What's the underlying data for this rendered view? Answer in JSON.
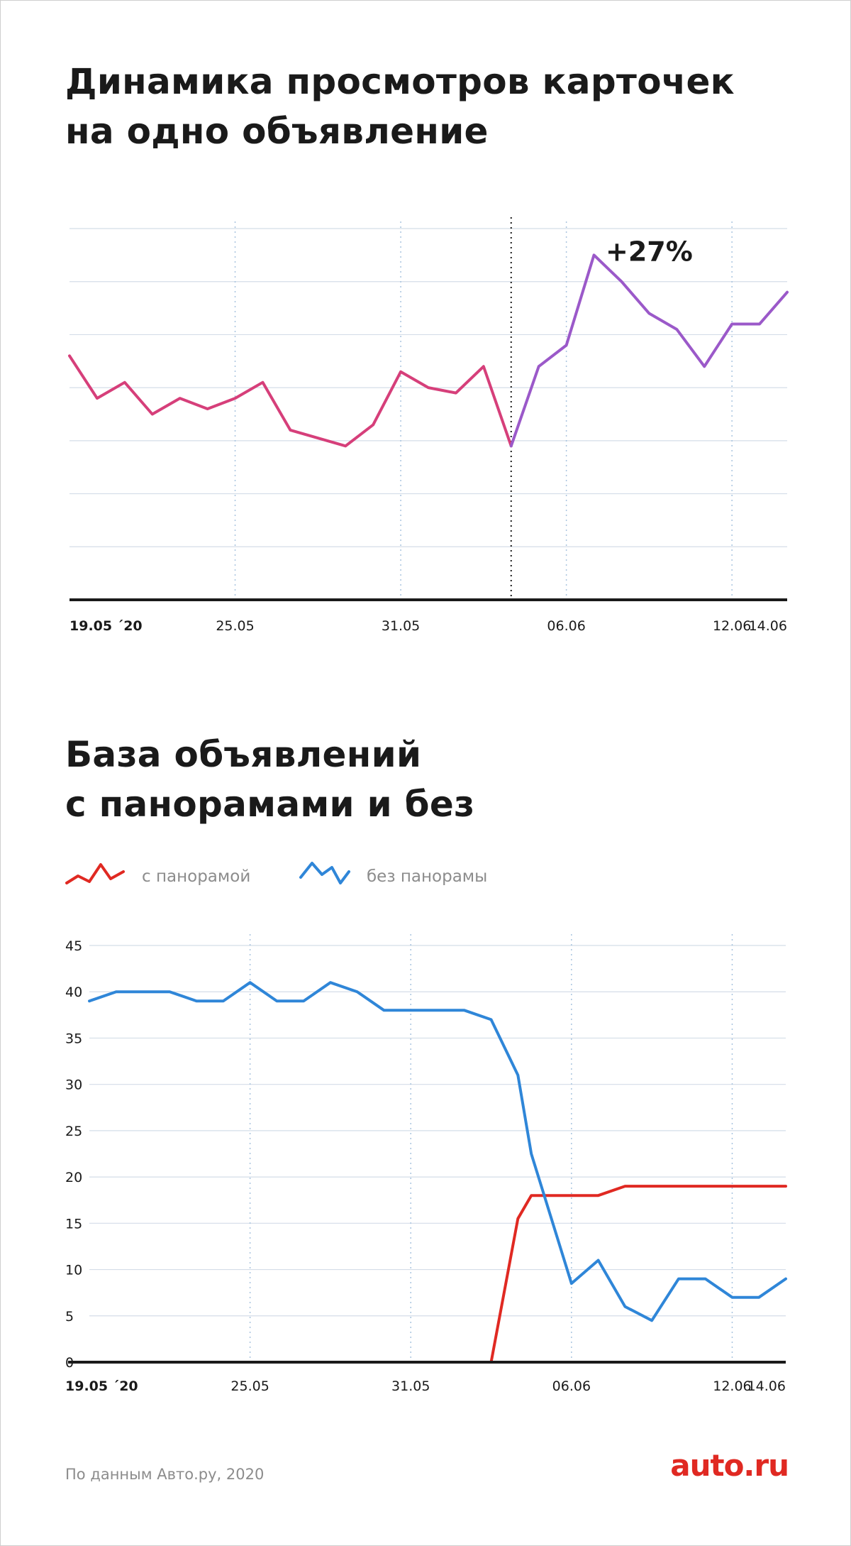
{
  "charts": [
    {
      "title_lines": [
        "Динамика просмотров карточек",
        "на одно объявление"
      ],
      "chart_data": {
        "type": "line",
        "title": "Динамика просмотров карточек на одно объявление",
        "xlabel": "",
        "ylabel": "",
        "x_start": "19.05",
        "x_end": "14.06",
        "x_ticks": [
          {
            "label": "19.05 ´20",
            "date": "19.05",
            "bold": true
          },
          {
            "label": "25.05",
            "date": "25.05"
          },
          {
            "label": "31.05",
            "date": "31.05"
          },
          {
            "label": "06.06",
            "date": "06.06"
          },
          {
            "label": "12.06",
            "date": "12.06"
          },
          {
            "label": "14.06",
            "date": "14.06"
          }
        ],
        "ylim": [
          0,
          7
        ],
        "y_gridlines": [
          1,
          2,
          3,
          4,
          5,
          6,
          7
        ],
        "grid": true,
        "marker_date": "04.06",
        "annotation": {
          "text": "+27%",
          "date": "09.06",
          "y": 6.5
        },
        "series": [
          {
            "color_before": "#d63f7a",
            "color_after": "#9b59c9",
            "points": [
              {
                "date": "19.05",
                "y": 4.6
              },
              {
                "date": "20.05",
                "y": 3.8
              },
              {
                "date": "21.05",
                "y": 4.1
              },
              {
                "date": "22.05",
                "y": 3.5
              },
              {
                "date": "23.05",
                "y": 3.8
              },
              {
                "date": "24.05",
                "y": 3.6
              },
              {
                "date": "25.05",
                "y": 3.8
              },
              {
                "date": "26.05",
                "y": 4.1
              },
              {
                "date": "27.05",
                "y": 3.2
              },
              {
                "date": "29.05",
                "y": 2.9
              },
              {
                "date": "30.05",
                "y": 3.3
              },
              {
                "date": "31.05",
                "y": 4.3
              },
              {
                "date": "01.06",
                "y": 4.0
              },
              {
                "date": "02.06",
                "y": 3.9
              },
              {
                "date": "03.06",
                "y": 4.4
              },
              {
                "date": "04.06",
                "y": 2.9
              },
              {
                "date": "05.06",
                "y": 4.4
              },
              {
                "date": "06.06",
                "y": 4.8
              },
              {
                "date": "07.06",
                "y": 6.5
              },
              {
                "date": "08.06",
                "y": 6.0
              },
              {
                "date": "09.06",
                "y": 5.4
              },
              {
                "date": "10.06",
                "y": 5.1
              },
              {
                "date": "11.06",
                "y": 4.4
              },
              {
                "date": "12.06",
                "y": 5.2
              },
              {
                "date": "13.06",
                "y": 5.2
              },
              {
                "date": "14.06",
                "y": 5.8
              }
            ]
          }
        ]
      }
    },
    {
      "title_lines": [
        "База объявлений",
        "с панорамами и без"
      ],
      "legend": [
        {
          "label": "с панорамой",
          "color": "#e02922"
        },
        {
          "label": "без панорамы",
          "color": "#2f86d8"
        }
      ],
      "chart_data": {
        "type": "line",
        "title": "База объявлений с панорамами и без",
        "xlabel": "",
        "ylabel": "",
        "x_start": "19.05",
        "x_end": "14.06",
        "x_ticks": [
          {
            "label": "19.05 ´20",
            "date": "19.05",
            "bold": true
          },
          {
            "label": "25.05",
            "date": "25.05"
          },
          {
            "label": "31.05",
            "date": "31.05"
          },
          {
            "label": "06.06",
            "date": "06.06"
          },
          {
            "label": "12.06",
            "date": "12.06"
          },
          {
            "label": "14.06",
            "date": "14.06"
          }
        ],
        "ylim": [
          0,
          45
        ],
        "y_ticks": [
          0,
          5,
          10,
          15,
          20,
          25,
          30,
          35,
          40,
          45
        ],
        "grid": true,
        "series": [
          {
            "name": "с панорамой",
            "color": "#e02922",
            "points": [
              {
                "date": "19.05",
                "y": 0
              },
              {
                "date": "03.06",
                "y": 0
              },
              {
                "date": "04.06",
                "y": 15.5
              },
              {
                "date": "04.06 12:00",
                "y": 18
              },
              {
                "date": "07.06",
                "y": 18
              },
              {
                "date": "08.06",
                "y": 19
              },
              {
                "date": "14.06",
                "y": 19
              }
            ]
          },
          {
            "name": "без панорамы",
            "color": "#2f86d8",
            "points": [
              {
                "date": "19.05",
                "y": 39
              },
              {
                "date": "20.05",
                "y": 40
              },
              {
                "date": "21.05",
                "y": 40
              },
              {
                "date": "22.05",
                "y": 40
              },
              {
                "date": "23.05",
                "y": 39
              },
              {
                "date": "24.05",
                "y": 39
              },
              {
                "date": "25.05",
                "y": 41
              },
              {
                "date": "26.05",
                "y": 39
              },
              {
                "date": "27.05",
                "y": 39
              },
              {
                "date": "28.05",
                "y": 41
              },
              {
                "date": "29.05",
                "y": 40
              },
              {
                "date": "30.05",
                "y": 38
              },
              {
                "date": "31.05",
                "y": 38
              },
              {
                "date": "02.06",
                "y": 38
              },
              {
                "date": "03.06",
                "y": 37
              },
              {
                "date": "04.06",
                "y": 31
              },
              {
                "date": "04.06 12:00",
                "y": 22.5
              },
              {
                "date": "06.06",
                "y": 8.5
              },
              {
                "date": "07.06",
                "y": 11
              },
              {
                "date": "08.06",
                "y": 6
              },
              {
                "date": "09.06",
                "y": 4.5
              },
              {
                "date": "10.06",
                "y": 9
              },
              {
                "date": "11.06",
                "y": 9
              },
              {
                "date": "12.06",
                "y": 7
              },
              {
                "date": "13.06",
                "y": 7
              },
              {
                "date": "14.06",
                "y": 9
              }
            ]
          }
        ]
      }
    }
  ],
  "footer": {
    "source": "По данным Авто.ру, 2020",
    "logo": "auto.ru",
    "logo_color": "#e02922"
  }
}
